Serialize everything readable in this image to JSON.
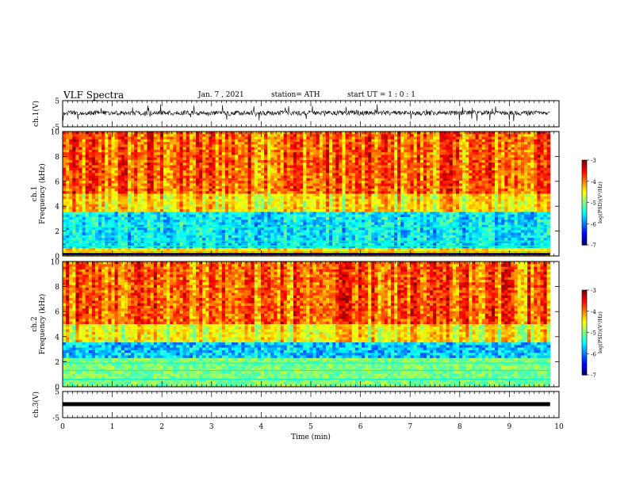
{
  "header": {
    "title": "VLF Spectra",
    "date": "Jan. 7 , 2021",
    "station": "station= ATH",
    "start": "start UT = 1 : 0 : 1"
  },
  "chart_data": [
    {
      "type": "line",
      "name": "ch1-waveform",
      "ylabel": "ch.1(V)",
      "ylim": [
        -5,
        5
      ],
      "yticks": [
        "5",
        "-5"
      ],
      "xlim": [
        0,
        10
      ]
    },
    {
      "type": "heatmap",
      "name": "ch1-spectrogram",
      "ylabel": "ch.1\nFrequency (kHz)",
      "ylim": [
        0,
        10
      ],
      "yticks": [
        "0",
        "2",
        "4",
        "6",
        "8",
        "10"
      ],
      "xlim": [
        0,
        10
      ],
      "colorbar": {
        "label": "log(PSD)(V²/Hz)",
        "ticks": [
          "-3",
          "-4",
          "-5",
          "-6",
          "-7"
        ],
        "range": [
          -7,
          -3
        ]
      }
    },
    {
      "type": "heatmap",
      "name": "ch2-spectrogram",
      "ylabel": "ch.2\nFrequency (kHz)",
      "ylim": [
        0,
        10
      ],
      "yticks": [
        "0",
        "2",
        "4",
        "6",
        "8",
        "10"
      ],
      "xlim": [
        0,
        10
      ],
      "colorbar": {
        "label": "log(PSD)(V²/Hz)",
        "ticks": [
          "-3",
          "-4",
          "-5",
          "-6",
          "-7"
        ],
        "range": [
          -7,
          -3
        ]
      }
    },
    {
      "type": "line",
      "name": "ch3-waveform",
      "ylabel": "ch.3(V)",
      "ylim": [
        -5,
        5
      ],
      "yticks": [
        "5",
        "-5"
      ],
      "xlim": [
        0,
        10
      ],
      "xlabel": "Time (min)",
      "xticks": [
        "0",
        "1",
        "2",
        "3",
        "4",
        "5",
        "6",
        "7",
        "8",
        "9",
        "10"
      ]
    }
  ],
  "colors": {
    "axis": "#000000",
    "waveform": "#000000"
  }
}
